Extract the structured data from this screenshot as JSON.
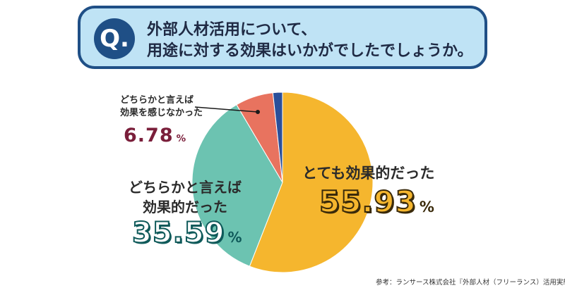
{
  "question": {
    "badge": "Q.",
    "line1": "外部人材活用について、",
    "line2": "用途に対する効果はいかがでしたでしょうか。"
  },
  "chart_data": {
    "type": "pie",
    "slices": [
      {
        "label": "とても効果的だった",
        "value": 55.93,
        "color": "#f5b62e",
        "value_text": "55.93"
      },
      {
        "label": "どちらかと言えば効果的だった",
        "label_lines": [
          "どちらかと言えば",
          "効果的だった"
        ],
        "value": 35.59,
        "color": "#6cc3b1",
        "value_text": "35.59"
      },
      {
        "label": "どちらかと言えば効果を感じなかった",
        "label_lines": [
          "どちらかと言えば",
          "効果を感じなかった"
        ],
        "value": 6.78,
        "color": "#e8735f",
        "value_text": "6.78"
      },
      {
        "label": "",
        "value": 1.7,
        "color": "#2a4f9a"
      }
    ],
    "unit": "%"
  },
  "source": "参考：ランサース株式会社『外部人材（フリーランス）活用実態調査』",
  "colors": {
    "banner_border": "#1f4f86",
    "banner_fill": "#bfe3f5",
    "pct_very": "#f5b62e",
    "pct_somewhat": "#6cc3b1",
    "pct_not": "#e8735f"
  }
}
